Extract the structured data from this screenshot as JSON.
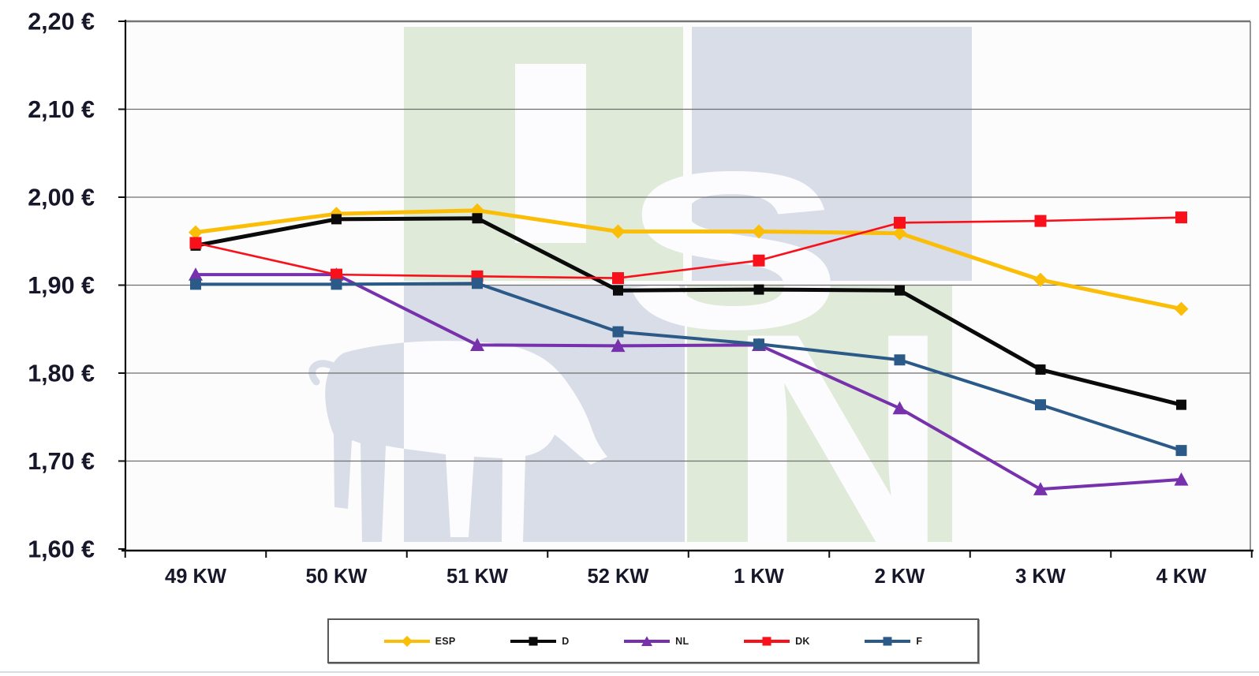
{
  "chart_data": {
    "type": "line",
    "title": "",
    "xlabel": "",
    "ylabel": "",
    "categories": [
      "49 KW",
      "50 KW",
      "51 KW",
      "52 KW",
      "1 KW",
      "2 KW",
      "3 KW",
      "4 KW"
    ],
    "y_ticks": [
      "2,20 €",
      "2,10 €",
      "2,00 €",
      "1,90 €",
      "1,80 €",
      "1,70 €",
      "1,60 €"
    ],
    "ylim": [
      1.6,
      2.2
    ],
    "y_step": 0.1,
    "grid": true,
    "legend_position": "bottom",
    "series": [
      {
        "name": "ESP",
        "color": "#FBBE08",
        "marker": "diamond",
        "line_width": 5,
        "marker_size": 9,
        "values": [
          1.96,
          1.981,
          1.985,
          1.961,
          1.961,
          1.959,
          1.906,
          1.873
        ]
      },
      {
        "name": "D",
        "color": "#0A0A0A",
        "marker": "square",
        "line_width": 5,
        "marker_size": 13,
        "values": [
          1.945,
          1.975,
          1.976,
          1.894,
          1.895,
          1.894,
          1.804,
          1.764
        ]
      },
      {
        "name": "NL",
        "color": "#7831AC",
        "marker": "triangle",
        "line_width": 4,
        "marker_size": 9,
        "values": [
          1.912,
          1.912,
          1.832,
          1.831,
          1.832,
          1.76,
          1.668,
          1.679
        ]
      },
      {
        "name": "DK",
        "color": "#F8101A",
        "marker": "square",
        "line_width": 2.6,
        "marker_size": 15,
        "values": [
          1.948,
          1.912,
          1.91,
          1.908,
          1.928,
          1.971,
          1.973,
          1.977
        ]
      },
      {
        "name": "F",
        "color": "#2B5A88",
        "marker": "square",
        "line_width": 4,
        "marker_size": 14,
        "values": [
          1.901,
          1.901,
          1.902,
          1.847,
          1.833,
          1.815,
          1.764,
          1.712
        ]
      }
    ]
  },
  "watermark": {
    "letters": [
      "I",
      "S",
      "N"
    ],
    "green": "#E0EAD9",
    "blue": "#D9DDE8",
    "white": "#FCFCFE"
  },
  "axis": {
    "label_color": "#17172A",
    "grid_color": "#6F6F6F",
    "axis_color": "#0F0F0F"
  }
}
